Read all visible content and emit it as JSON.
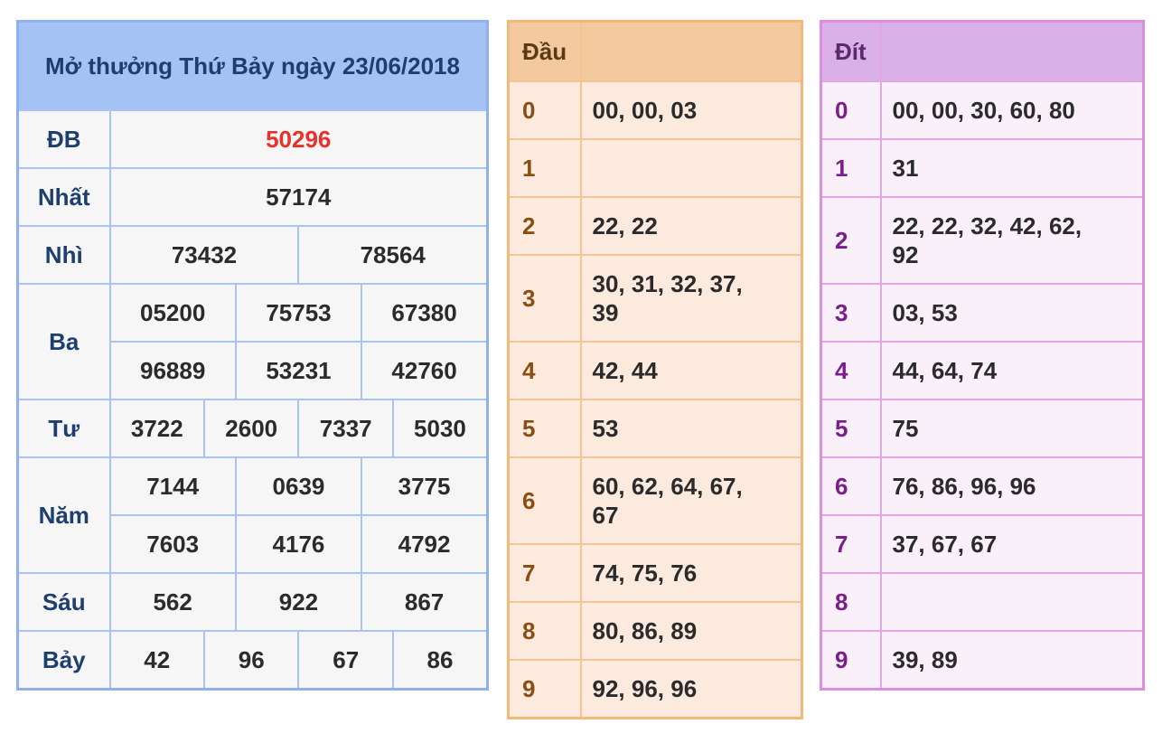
{
  "results": {
    "title": "Mở thưởng Thứ Bảy ngày 23/06/2018",
    "rows": [
      {
        "label": "ĐB",
        "values": [
          "50296"
        ]
      },
      {
        "label": "Nhất",
        "values": [
          "57174"
        ]
      },
      {
        "label": "Nhì",
        "values": [
          "73432",
          "78564"
        ]
      },
      {
        "label": "Ba",
        "values": [
          "05200",
          "75753",
          "67380",
          "96889",
          "53231",
          "42760"
        ]
      },
      {
        "label": "Tư",
        "values": [
          "3722",
          "2600",
          "7337",
          "5030"
        ]
      },
      {
        "label": "Năm",
        "values": [
          "7144",
          "0639",
          "3775",
          "7603",
          "4176",
          "4792"
        ]
      },
      {
        "label": "Sáu",
        "values": [
          "562",
          "922",
          "867"
        ]
      },
      {
        "label": "Bảy",
        "values": [
          "42",
          "96",
          "67",
          "86"
        ]
      }
    ],
    "special_color": "#e8312b"
  },
  "dau": {
    "header": "Đầu",
    "header_value": "",
    "rows": [
      {
        "key": "0",
        "value": "00, 00, 03"
      },
      {
        "key": "1",
        "value": ""
      },
      {
        "key": "2",
        "value": "22, 22"
      },
      {
        "key": "3",
        "value": "30, 31, 32, 37, 39"
      },
      {
        "key": "4",
        "value": "42, 44"
      },
      {
        "key": "5",
        "value": "53"
      },
      {
        "key": "6",
        "value": "60, 62, 64, 67, 67"
      },
      {
        "key": "7",
        "value": "74, 75, 76"
      },
      {
        "key": "8",
        "value": "80, 86, 89"
      },
      {
        "key": "9",
        "value": "92, 96, 96"
      }
    ]
  },
  "dit": {
    "header": "Đít",
    "header_value": "",
    "rows": [
      {
        "key": "0",
        "value": "00, 00, 30, 60, 80"
      },
      {
        "key": "1",
        "value": "31"
      },
      {
        "key": "2",
        "value": "22, 22, 32, 42, 62, 92"
      },
      {
        "key": "3",
        "value": "03, 53"
      },
      {
        "key": "4",
        "value": "44, 64, 74"
      },
      {
        "key": "5",
        "value": "75"
      },
      {
        "key": "6",
        "value": "76, 86, 96, 96"
      },
      {
        "key": "7",
        "value": "37, 67, 67"
      },
      {
        "key": "8",
        "value": ""
      },
      {
        "key": "9",
        "value": "39, 89"
      }
    ]
  }
}
